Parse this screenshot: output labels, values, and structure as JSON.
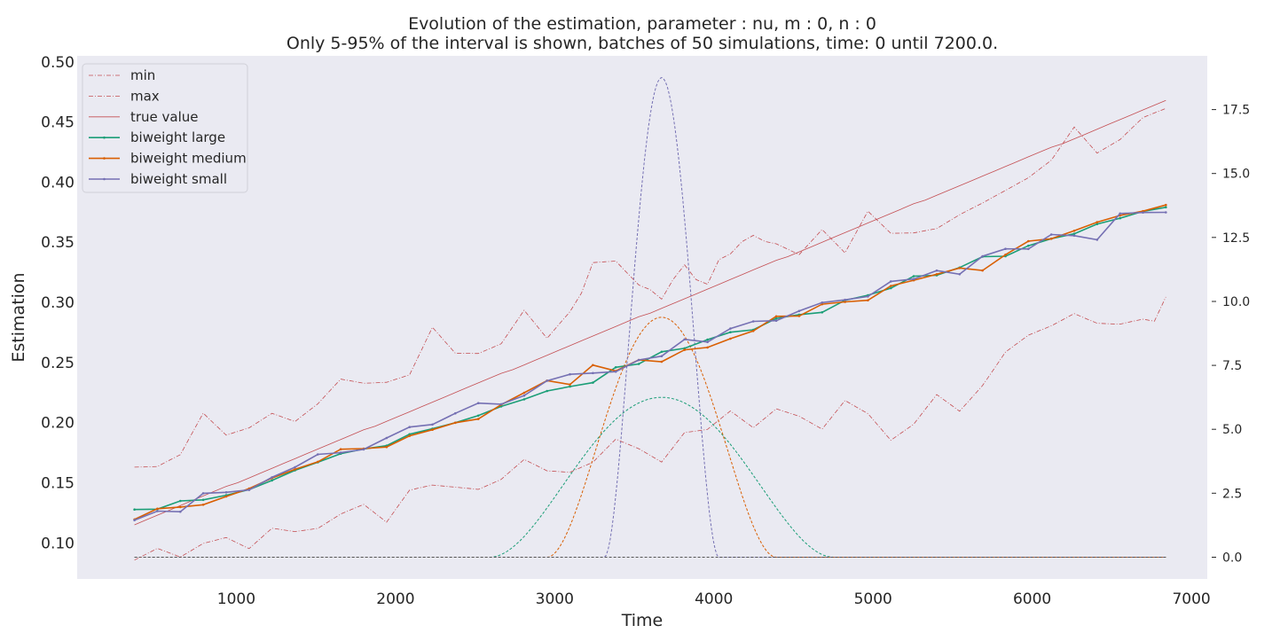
{
  "chart_data": {
    "type": "line",
    "title": "Evolution of the estimation, parameter : nu, m : 0, n : 0",
    "subtitle": "Only 5-95% of the interval is shown, batches of 50 simulations, time: 0 until 7200.0.",
    "xlabel": "Time",
    "ylabel": "Estimation",
    "xlim": [
      0,
      7100
    ],
    "ylim": [
      0.07,
      0.505
    ],
    "y2lim": [
      -0.85,
      19.6
    ],
    "xticks": [
      "1000",
      "2000",
      "3000",
      "4000",
      "5000",
      "6000",
      "7000"
    ],
    "yticks": [
      "0.10",
      "0.15",
      "0.20",
      "0.25",
      "0.30",
      "0.35",
      "0.40",
      "0.45",
      "0.50"
    ],
    "y2ticks": [
      "0.0",
      "2.5",
      "5.0",
      "7.5",
      "10.0",
      "12.5",
      "15.0",
      "17.5"
    ],
    "grid": false,
    "legend_position": "upper-left",
    "x": [
      360,
      432,
      504,
      576,
      648,
      720,
      792,
      864,
      936,
      1008,
      1080,
      1152,
      1224,
      1296,
      1368,
      1440,
      1512,
      1584,
      1656,
      1728,
      1800,
      1872,
      1944,
      2016,
      2088,
      2160,
      2232,
      2304,
      2376,
      2448,
      2520,
      2592,
      2664,
      2736,
      2808,
      2880,
      2952,
      3024,
      3096,
      3168,
      3240,
      3312,
      3384,
      3456,
      3528,
      3600,
      3672,
      3744,
      3816,
      3888,
      3960,
      4032,
      4104,
      4176,
      4248,
      4320,
      4392,
      4464,
      4536,
      4608,
      4680,
      4752,
      4824,
      4896,
      4968,
      5040,
      5112,
      5184,
      5256,
      5328,
      5400,
      5472,
      5544,
      5616,
      5688,
      5760,
      5832,
      5904,
      5976,
      6048,
      6120,
      6192,
      6264,
      6336,
      6408,
      6480,
      6552,
      6624,
      6696,
      6768,
      6840
    ],
    "series": [
      {
        "name": "min",
        "color": "#c44e52",
        "style": "dashdot",
        "axis": "left",
        "values": [
          0.0857,
          0.0905,
          0.0954,
          0.0918,
          0.0882,
          0.0939,
          0.0996,
          0.102,
          0.1044,
          0.0998,
          0.0952,
          0.1037,
          0.1122,
          0.1108,
          0.1094,
          0.1107,
          0.112,
          0.118,
          0.124,
          0.128,
          0.132,
          0.1246,
          0.1172,
          0.1305,
          0.1438,
          0.146,
          0.1481,
          0.1472,
          0.1463,
          0.1454,
          0.1445,
          0.1486,
          0.1528,
          0.1611,
          0.1694,
          0.1647,
          0.1599,
          0.1593,
          0.1587,
          0.1629,
          0.167,
          0.1767,
          0.1863,
          0.1823,
          0.1783,
          0.1728,
          0.1672,
          0.1794,
          0.1917,
          0.193,
          0.1944,
          0.2021,
          0.2097,
          0.2027,
          0.1958,
          0.2036,
          0.2115,
          0.2084,
          0.2053,
          0.2,
          0.1946,
          0.2065,
          0.2184,
          0.2129,
          0.2075,
          0.1964,
          0.1853,
          0.192,
          0.1987,
          0.211,
          0.2233,
          0.2164,
          0.2095,
          0.2201,
          0.2308,
          0.2447,
          0.2587,
          0.2657,
          0.2727,
          0.2766,
          0.2805,
          0.2856,
          0.2907,
          0.2866,
          0.2826,
          0.2822,
          0.2819,
          0.284,
          0.286,
          0.2843,
          0.3045
        ]
      },
      {
        "name": "max",
        "color": "#c44e52",
        "style": "dashdot",
        "axis": "left",
        "values": [
          0.163,
          0.1632,
          0.1635,
          0.1685,
          0.1734,
          0.1907,
          0.2079,
          0.1987,
          0.1896,
          0.1926,
          0.1956,
          0.2017,
          0.2077,
          0.2043,
          0.2009,
          0.2083,
          0.2156,
          0.2259,
          0.2362,
          0.2345,
          0.2327,
          0.2331,
          0.2335,
          0.2366,
          0.2397,
          0.2595,
          0.2793,
          0.2685,
          0.2577,
          0.2576,
          0.2575,
          0.2615,
          0.2656,
          0.2795,
          0.2935,
          0.2818,
          0.2701,
          0.2812,
          0.2922,
          0.3077,
          0.3331,
          0.3337,
          0.3343,
          0.3244,
          0.3145,
          0.3106,
          0.3027,
          0.319,
          0.3312,
          0.319,
          0.3151,
          0.3355,
          0.3403,
          0.3504,
          0.3557,
          0.3507,
          0.3487,
          0.3442,
          0.3397,
          0.3502,
          0.3606,
          0.3509,
          0.3412,
          0.3585,
          0.3758,
          0.3666,
          0.3574,
          0.3576,
          0.3578,
          0.3596,
          0.3614,
          0.3671,
          0.3729,
          0.3778,
          0.3826,
          0.3879,
          0.3931,
          0.3984,
          0.4036,
          0.4109,
          0.4182,
          0.432,
          0.4458,
          0.435,
          0.4241,
          0.4298,
          0.4354,
          0.4446,
          0.4537,
          0.4575,
          0.4613
        ]
      },
      {
        "name": "true value",
        "color": "#c44e52",
        "style": "solid-thin",
        "axis": "left",
        "values": [
          0.115,
          0.119,
          0.123,
          0.127,
          0.131,
          0.135,
          0.139,
          0.143,
          0.147,
          0.15,
          0.154,
          0.158,
          0.162,
          0.166,
          0.17,
          0.174,
          0.178,
          0.182,
          0.186,
          0.19,
          0.194,
          0.197,
          0.201,
          0.205,
          0.209,
          0.213,
          0.217,
          0.221,
          0.225,
          0.229,
          0.233,
          0.237,
          0.241,
          0.244,
          0.248,
          0.252,
          0.256,
          0.26,
          0.264,
          0.268,
          0.272,
          0.276,
          0.28,
          0.284,
          0.288,
          0.291,
          0.295,
          0.299,
          0.303,
          0.307,
          0.311,
          0.315,
          0.319,
          0.323,
          0.327,
          0.331,
          0.335,
          0.338,
          0.342,
          0.346,
          0.35,
          0.354,
          0.358,
          0.362,
          0.366,
          0.37,
          0.374,
          0.378,
          0.382,
          0.385,
          0.389,
          0.393,
          0.397,
          0.401,
          0.405,
          0.409,
          0.413,
          0.417,
          0.421,
          0.425,
          0.429,
          0.432,
          0.436,
          0.44,
          0.444,
          0.448,
          0.452,
          0.456,
          0.46,
          0.464,
          0.468
        ]
      }
    ],
    "series_hint": "x values for the three series above are the first 90 x values (360 to 6840 step 72); series below use batch_x",
    "batch_x": [
      360,
      504,
      648,
      792,
      936,
      1080,
      1224,
      1368,
      1512,
      1656,
      1800,
      1944,
      2088,
      2232,
      2376,
      2520,
      2664,
      2808,
      2952,
      3096,
      3240,
      3384,
      3528,
      3672,
      3816,
      3960,
      4104,
      4248,
      4392,
      4536,
      4680,
      4824,
      4968,
      5112,
      5256,
      5400,
      5544,
      5688,
      5832,
      5976,
      6120,
      6264,
      6408,
      6552,
      6696,
      6840
    ],
    "batch_series": [
      {
        "name": "biweight large",
        "color": "#1b9e77",
        "axis": "left",
        "values": [
          0.1277,
          0.128,
          0.1349,
          0.1358,
          0.1396,
          0.1443,
          0.1519,
          0.1603,
          0.167,
          0.1742,
          0.1781,
          0.1808,
          0.1903,
          0.195,
          0.1999,
          0.2058,
          0.2135,
          0.2194,
          0.2263,
          0.23,
          0.2332,
          0.246,
          0.2488,
          0.2589,
          0.2618,
          0.269,
          0.2752,
          0.2772,
          0.2867,
          0.2898,
          0.2917,
          0.3017,
          0.3059,
          0.3118,
          0.3218,
          0.3225,
          0.3289,
          0.338,
          0.3384,
          0.3471,
          0.353,
          0.357,
          0.3651,
          0.37,
          0.3757,
          0.3791
        ]
      },
      {
        "name": "biweight medium",
        "color": "#d95f02",
        "axis": "left",
        "values": [
          0.1195,
          0.1284,
          0.1298,
          0.1317,
          0.1386,
          0.1451,
          0.1538,
          0.1611,
          0.1674,
          0.1779,
          0.1784,
          0.1797,
          0.189,
          0.1941,
          0.1999,
          0.203,
          0.2149,
          0.2248,
          0.2349,
          0.2317,
          0.2478,
          0.243,
          0.2521,
          0.2506,
          0.2605,
          0.2625,
          0.2698,
          0.2762,
          0.2884,
          0.2887,
          0.2985,
          0.3004,
          0.3017,
          0.3137,
          0.3184,
          0.3234,
          0.3286,
          0.3265,
          0.3396,
          0.3509,
          0.3529,
          0.3595,
          0.3667,
          0.3723,
          0.3758,
          0.381
        ]
      },
      {
        "name": "biweight small",
        "color": "#7570b3",
        "axis": "left",
        "values": [
          0.1189,
          0.1264,
          0.1259,
          0.1412,
          0.142,
          0.144,
          0.1545,
          0.1629,
          0.1736,
          0.175,
          0.1777,
          0.1872,
          0.1963,
          0.1984,
          0.2077,
          0.2162,
          0.2153,
          0.2225,
          0.2348,
          0.2402,
          0.2412,
          0.2424,
          0.2521,
          0.2553,
          0.2692,
          0.267,
          0.2782,
          0.2842,
          0.2848,
          0.2928,
          0.2998,
          0.3021,
          0.3049,
          0.3174,
          0.3194,
          0.3264,
          0.3234,
          0.3384,
          0.3445,
          0.3444,
          0.3564,
          0.3555,
          0.3521,
          0.3739,
          0.3747,
          0.3749
        ]
      }
    ],
    "kernels": [
      {
        "name": "biweight large",
        "color": "#1b9e77",
        "axis": "right",
        "center": 3672,
        "half_width": 1080,
        "peak": 6.25
      },
      {
        "name": "biweight medium",
        "color": "#d95f02",
        "axis": "right",
        "center": 3672,
        "half_width": 720,
        "peak": 9.38
      },
      {
        "name": "biweight small",
        "color": "#7570b3",
        "axis": "right",
        "center": 3672,
        "half_width": 360,
        "peak": 18.75
      },
      {
        "name": "baseline",
        "color": "#555555",
        "axis": "right",
        "start": 360,
        "end": 6840,
        "value": 0
      }
    ],
    "legend": [
      "min",
      "max",
      "true value",
      "biweight large",
      "biweight medium",
      "biweight small"
    ]
  }
}
